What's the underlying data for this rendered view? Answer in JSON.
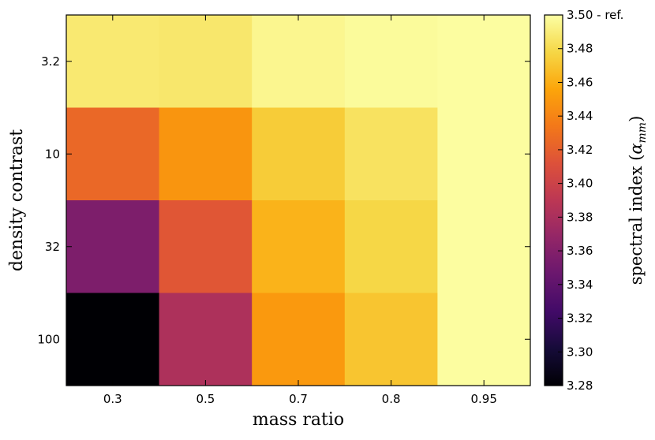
{
  "chart_data": {
    "type": "heatmap",
    "title": "",
    "xlabel": "mass ratio",
    "ylabel": "density contrast",
    "x_categories": [
      "0.3",
      "0.5",
      "0.7",
      "0.8",
      "0.95"
    ],
    "y_categories": [
      "3.2",
      "10",
      "32",
      "100"
    ],
    "values": [
      [
        3.488,
        3.487,
        3.495,
        3.498,
        3.499
      ],
      [
        3.425,
        3.448,
        3.473,
        3.484,
        3.499
      ],
      [
        3.356,
        3.415,
        3.462,
        3.478,
        3.499
      ],
      [
        3.28,
        3.382,
        3.45,
        3.47,
        3.499
      ]
    ],
    "colormap": "inferno",
    "colorbar": {
      "label_main": "spectral index",
      "label_symbol": "α",
      "label_subscript": "mm",
      "vmin": 3.28,
      "vmax": 3.5,
      "ticks": [
        "3.28",
        "3.30",
        "3.32",
        "3.34",
        "3.36",
        "3.38",
        "3.40",
        "3.42",
        "3.44",
        "3.46",
        "3.48",
        "3.50 - ref."
      ]
    }
  }
}
